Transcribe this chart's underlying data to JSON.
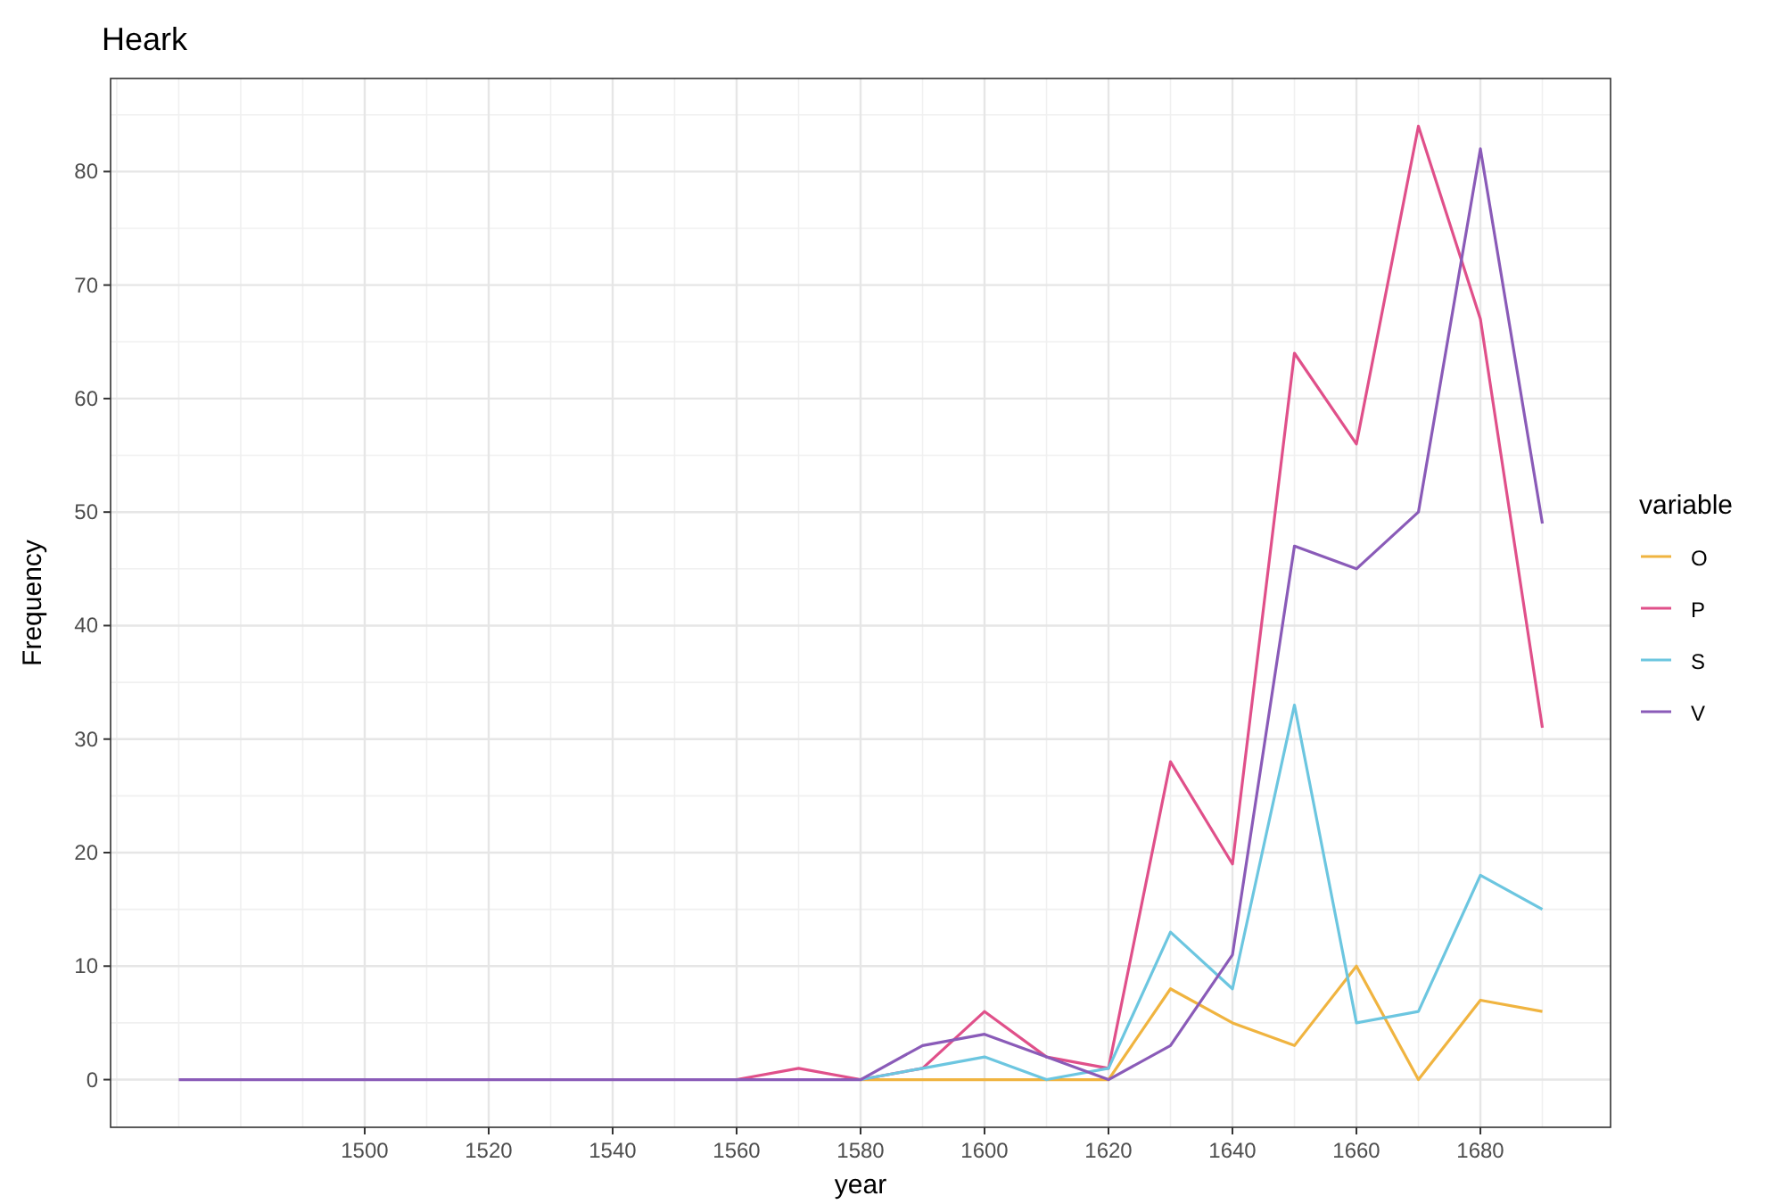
{
  "chart_data": {
    "type": "line",
    "title": "Heark",
    "xlabel": "year",
    "ylabel": "Frequency",
    "legend_title": "variable",
    "legend": "right",
    "grid": true,
    "x": [
      1470,
      1480,
      1490,
      1500,
      1510,
      1520,
      1530,
      1540,
      1550,
      1560,
      1570,
      1580,
      1590,
      1600,
      1610,
      1620,
      1630,
      1640,
      1650,
      1660,
      1670,
      1680,
      1690
    ],
    "xlim": [
      1459,
      1701
    ],
    "xticks": [
      1500,
      1520,
      1540,
      1560,
      1580,
      1600,
      1620,
      1640,
      1660,
      1680
    ],
    "ylim": [
      -4.2,
      88.2
    ],
    "yticks": [
      0,
      10,
      20,
      30,
      40,
      50,
      60,
      70,
      80
    ],
    "series": [
      {
        "name": "O",
        "color": "#f0b440",
        "values": [
          null,
          null,
          null,
          null,
          null,
          null,
          null,
          null,
          null,
          null,
          null,
          0,
          0,
          0,
          0,
          0,
          8,
          5,
          3,
          10,
          0,
          7,
          6
        ]
      },
      {
        "name": "P",
        "color": "#e0508a",
        "values": [
          null,
          null,
          null,
          null,
          null,
          null,
          null,
          null,
          null,
          0,
          1,
          0,
          1,
          6,
          2,
          1,
          28,
          19,
          64,
          56,
          84,
          67,
          31
        ]
      },
      {
        "name": "S",
        "color": "#6cc6e0",
        "values": [
          null,
          null,
          null,
          null,
          null,
          null,
          null,
          null,
          null,
          null,
          null,
          0,
          1,
          2,
          0,
          1,
          13,
          8,
          33,
          5,
          6,
          18,
          15
        ]
      },
      {
        "name": "V",
        "color": "#8a5bb8",
        "values": [
          0,
          0,
          0,
          0,
          0,
          0,
          0,
          0,
          0,
          0,
          0,
          0,
          3,
          4,
          2,
          0,
          3,
          11,
          47,
          45,
          50,
          82,
          49
        ]
      }
    ]
  }
}
